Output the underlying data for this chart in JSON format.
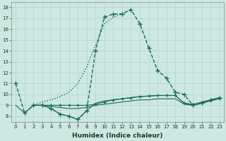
{
  "title": "",
  "xlabel": "Humidex (Indice chaleur)",
  "ylabel": "",
  "xlim": [
    -0.5,
    23.5
  ],
  "ylim": [
    7.5,
    18.5
  ],
  "xticks": [
    0,
    1,
    2,
    3,
    4,
    5,
    6,
    7,
    8,
    9,
    10,
    11,
    12,
    13,
    14,
    15,
    16,
    17,
    18,
    19,
    20,
    21,
    22,
    23
  ],
  "yticks": [
    8,
    9,
    10,
    11,
    12,
    13,
    14,
    15,
    16,
    17,
    18
  ],
  "bg_color": "#cce8e0",
  "grid_color": "#aed4cc",
  "line_color": "#1a6b5a",
  "lines": [
    {
      "x": [
        1,
        2,
        3,
        4,
        5,
        6,
        7,
        8,
        9,
        10,
        11,
        12,
        13
      ],
      "y": [
        8.3,
        9.0,
        9.3,
        9.5,
        9.8,
        10.2,
        11.0,
        12.5,
        14.5,
        16.5,
        17.1,
        17.4,
        17.8
      ],
      "style": ":",
      "marker": null,
      "lw": 1.0
    },
    {
      "x": [
        0,
        1,
        2,
        3,
        4,
        5,
        6,
        7,
        8,
        9,
        10,
        11,
        12,
        13,
        14,
        15,
        16,
        17,
        18,
        19,
        20,
        21,
        22,
        23
      ],
      "y": [
        11.0,
        8.3,
        9.0,
        9.0,
        8.7,
        8.2,
        8.0,
        7.7,
        8.5,
        14.0,
        17.1,
        17.4,
        17.4,
        17.8,
        16.5,
        14.3,
        12.2,
        11.5,
        10.2,
        10.0,
        9.0,
        9.2,
        9.5,
        9.7
      ],
      "style": "--",
      "marker": "+",
      "markersize": 4,
      "lw": 1.0
    },
    {
      "x": [
        0,
        1,
        2,
        3,
        4,
        5,
        6,
        7,
        8,
        9,
        10,
        11,
        12,
        13,
        14,
        15,
        16,
        17,
        18,
        19,
        20,
        21,
        22,
        23
      ],
      "y": [
        9.0,
        8.3,
        9.0,
        9.0,
        8.7,
        8.2,
        8.0,
        7.7,
        8.5,
        9.2,
        9.4,
        9.5,
        9.6,
        9.7,
        9.8,
        9.85,
        9.9,
        9.9,
        9.9,
        9.2,
        9.0,
        9.2,
        9.5,
        9.7
      ],
      "style": "-",
      "marker": null,
      "markersize": 0,
      "lw": 0.8
    },
    {
      "x": [
        2,
        3,
        4,
        5,
        6,
        7,
        8,
        9,
        10,
        11,
        12,
        13,
        14,
        15,
        16,
        17,
        18,
        19,
        20,
        21,
        22,
        23
      ],
      "y": [
        9.0,
        9.0,
        8.9,
        8.8,
        8.7,
        8.7,
        8.8,
        9.0,
        9.1,
        9.2,
        9.3,
        9.4,
        9.5,
        9.5,
        9.6,
        9.6,
        9.6,
        9.1,
        9.0,
        9.2,
        9.4,
        9.6
      ],
      "style": "-",
      "marker": null,
      "markersize": 0,
      "lw": 0.8
    },
    {
      "x": [
        2,
        3,
        4,
        5,
        6,
        7,
        8,
        9,
        10,
        11,
        12,
        13,
        14,
        15,
        16,
        17,
        18,
        19,
        20,
        21,
        22,
        23
      ],
      "y": [
        9.0,
        9.0,
        9.0,
        9.0,
        9.0,
        9.0,
        9.0,
        9.1,
        9.3,
        9.5,
        9.6,
        9.7,
        9.8,
        9.85,
        9.9,
        9.9,
        9.9,
        9.2,
        9.1,
        9.3,
        9.5,
        9.7
      ],
      "style": "-",
      "marker": "+",
      "markersize": 3,
      "lw": 0.8
    }
  ]
}
